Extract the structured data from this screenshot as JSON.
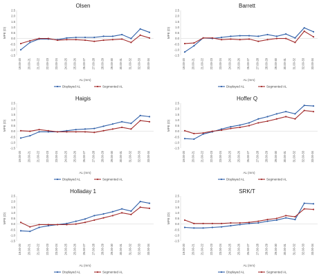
{
  "chart_data": [
    {
      "type": "line",
      "title": "Olsen",
      "xlabel": "AL (mm)",
      "ylabel": "MPE (D)",
      "categories": [
        "19.00-20",
        "20.00-21",
        "21.00-22",
        "22.00-23",
        "23.00-24",
        "24.00-25",
        "25.00-26",
        "26.00-27",
        "27.00-28",
        "28.00-29",
        "29.00-30",
        "30.00-31",
        "31.00-32",
        "32.00-33",
        "33.00-34"
      ],
      "yticks": [
        "2.5",
        "2.0",
        "1.5",
        "1.0",
        "0.5",
        "0.0",
        "-0.5",
        "-1.0",
        "-1.5"
      ],
      "ylim": [
        -1.5,
        2.5
      ],
      "series": [
        {
          "name": "Displayed AL",
          "color": "#2f5fa8",
          "values": [
            -1.0,
            -0.35,
            -0.05,
            -0.05,
            -0.1,
            0.05,
            0.1,
            0.1,
            0.1,
            0.2,
            0.2,
            0.35,
            0.0,
            0.85,
            0.55
          ]
        },
        {
          "name": "Segmented AL",
          "color": "#a22b2b",
          "values": [
            -0.45,
            -0.2,
            0.0,
            0.0,
            -0.15,
            -0.1,
            -0.1,
            -0.15,
            -0.25,
            -0.15,
            -0.1,
            -0.05,
            -0.35,
            0.3,
            0.05
          ]
        }
      ],
      "legend": "bottom",
      "grid": false
    },
    {
      "type": "line",
      "title": "Barrett",
      "xlabel": "AL (mm)",
      "ylabel": "MPE (D)",
      "categories": [
        "19.00-20",
        "20.00-21",
        "21.00-22",
        "22.00-23",
        "23.00-24",
        "24.00-25",
        "25.00-26",
        "26.00-27",
        "27.00-28",
        "28.00-29",
        "29.00-30",
        "30.00-31",
        "31.00-32",
        "32.00-33",
        "33.00-34"
      ],
      "yticks": [
        "2.5",
        "2.0",
        "1.5",
        "1.0",
        "0.5",
        "0.0",
        "-0.5",
        "-1.0",
        "-1.5"
      ],
      "ylim": [
        -1.5,
        2.5
      ],
      "series": [
        {
          "name": "Displayed AL",
          "color": "#2f5fa8",
          "values": [
            -1.2,
            -0.65,
            0.05,
            0.0,
            0.1,
            0.2,
            0.25,
            0.25,
            0.2,
            0.35,
            0.2,
            0.4,
            0.05,
            0.95,
            0.6
          ]
        },
        {
          "name": "Segmented AL",
          "color": "#a22b2b",
          "values": [
            -0.45,
            -0.4,
            0.05,
            0.05,
            -0.1,
            -0.05,
            -0.1,
            -0.05,
            -0.25,
            -0.1,
            0.0,
            0.0,
            -0.35,
            0.65,
            0.15
          ]
        }
      ],
      "legend": "bottom",
      "grid": false
    },
    {
      "type": "line",
      "title": "Haigis",
      "xlabel": "AL (mm)",
      "ylabel": "MPE (D)",
      "categories": [
        "19.00-20",
        "20.00-21",
        "21.00-22",
        "22.00-23",
        "23.00-24",
        "24.00-25",
        "25.00-26",
        "26.00-27",
        "27.00-28",
        "28.00-29",
        "29.00-30",
        "30.00-31",
        "31.00-32",
        "32.00-33",
        "33.00-34"
      ],
      "yticks": [
        "2.5",
        "2.0",
        "1.5",
        "1.0",
        "0.5",
        "0.0",
        "-0.5",
        "-1.0",
        "-1.5"
      ],
      "ylim": [
        -1.5,
        2.5
      ],
      "series": [
        {
          "name": "Displayed AL",
          "color": "#2f5fa8",
          "values": [
            -0.6,
            -0.4,
            -0.05,
            -0.05,
            -0.05,
            0.05,
            0.15,
            0.2,
            0.25,
            0.45,
            0.65,
            0.85,
            0.7,
            1.4,
            1.3
          ]
        },
        {
          "name": "Segmented AL",
          "color": "#a22b2b",
          "values": [
            0.05,
            0.0,
            0.15,
            0.05,
            -0.05,
            -0.05,
            -0.05,
            -0.05,
            -0.1,
            0.05,
            0.2,
            0.35,
            0.2,
            0.95,
            0.85
          ]
        }
      ],
      "legend": "bottom",
      "grid": false
    },
    {
      "type": "line",
      "title": "Hoffer Q",
      "xlabel": "AL (mm)",
      "ylabel": "MPE (D)",
      "categories": [
        "19.00-20",
        "20.00-21",
        "21.00-22",
        "22.00-23",
        "23.00-24",
        "24.00-25",
        "25.00-26",
        "26.00-27",
        "27.00-28",
        "28.00-29",
        "29.00-30",
        "30.00-31",
        "31.00-32",
        "32.00-33",
        "33.00-34"
      ],
      "yticks": [
        "2.5",
        "2.0",
        "1.5",
        "1.0",
        "0.5",
        "0.0",
        "-0.5",
        "-1.0",
        "-1.5"
      ],
      "ylim": [
        -1.5,
        2.5
      ],
      "series": [
        {
          "name": "Displayed AL",
          "color": "#2f5fa8",
          "values": [
            -0.65,
            -0.7,
            -0.25,
            -0.05,
            0.2,
            0.4,
            0.55,
            0.75,
            1.1,
            1.3,
            1.55,
            1.75,
            1.55,
            2.3,
            2.25
          ]
        },
        {
          "name": "Segmented AL",
          "color": "#a22b2b",
          "values": [
            0.05,
            -0.2,
            -0.15,
            0.0,
            0.1,
            0.25,
            0.35,
            0.5,
            0.75,
            0.9,
            1.1,
            1.3,
            1.1,
            1.85,
            1.75
          ]
        }
      ],
      "legend": "bottom",
      "grid": false
    },
    {
      "type": "line",
      "title": "Holladay 1",
      "xlabel": "AL (mm)",
      "ylabel": "MPE (D)",
      "categories": [
        "19.00-20",
        "20.00-21",
        "21.00-22",
        "22.00-23",
        "23.00-24",
        "24.00-25",
        "25.00-26",
        "26.00-27",
        "27.00-28",
        "28.00-29",
        "29.00-30",
        "30.00-31",
        "31.00-32",
        "32.00-33",
        "33.00-34"
      ],
      "yticks": [
        "2.5",
        "2.0",
        "1.5",
        "1.0",
        "0.5",
        "0.0",
        "-0.5",
        "-1.0",
        "-1.5"
      ],
      "ylim": [
        -1.5,
        2.5
      ],
      "series": [
        {
          "name": "Displayed AL",
          "color": "#2f5fa8",
          "values": [
            -0.6,
            -0.65,
            -0.3,
            -0.15,
            -0.05,
            0.05,
            0.25,
            0.45,
            0.75,
            0.9,
            1.1,
            1.35,
            1.15,
            2.0,
            1.85
          ]
        },
        {
          "name": "Segmented AL",
          "color": "#a22b2b",
          "values": [
            0.15,
            -0.25,
            -0.05,
            -0.05,
            -0.05,
            -0.05,
            0.0,
            0.15,
            0.35,
            0.55,
            0.75,
            1.0,
            0.85,
            1.5,
            1.4
          ]
        }
      ],
      "legend": "bottom",
      "grid": false
    },
    {
      "type": "line",
      "title": "SRK/T",
      "xlabel": "AL (mm)",
      "ylabel": "MPE (D)",
      "categories": [
        "19.00-20",
        "20.00-21",
        "21.00-22",
        "22.00-23",
        "23.00-24",
        "24.00-25",
        "25.00-26",
        "26.00-27",
        "27.00-28",
        "28.00-29",
        "29.00-30",
        "30.00-31",
        "31.00-32",
        "32.00-33",
        "33.00-34"
      ],
      "yticks": [
        "2.5",
        "2.0",
        "1.5",
        "1.0",
        "0.5",
        "0.0",
        "-0.5",
        "-1.0",
        "-1.5"
      ],
      "ylim": [
        -1.5,
        2.5
      ],
      "series": [
        {
          "name": "Displayed AL",
          "color": "#2f5fa8",
          "values": [
            -0.3,
            -0.35,
            -0.35,
            -0.3,
            -0.25,
            -0.15,
            -0.05,
            0.05,
            0.1,
            0.25,
            0.35,
            0.55,
            0.4,
            1.85,
            1.8
          ]
        },
        {
          "name": "Segmented AL",
          "color": "#a22b2b",
          "values": [
            0.35,
            0.05,
            0.05,
            0.05,
            0.05,
            0.1,
            0.1,
            0.15,
            0.25,
            0.4,
            0.5,
            0.75,
            0.65,
            1.35,
            1.3
          ]
        }
      ],
      "legend": "bottom",
      "grid": false
    }
  ]
}
